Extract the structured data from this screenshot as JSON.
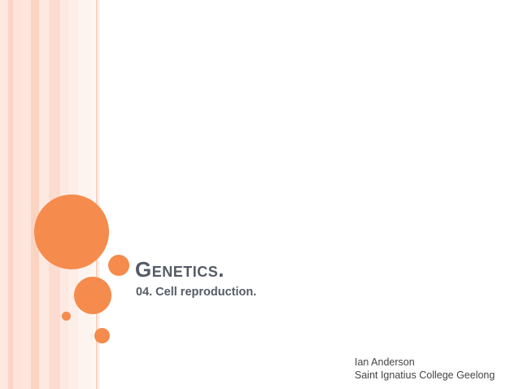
{
  "slide": {
    "title": "Genetics.",
    "subtitle": "04. Cell reproduction.",
    "author_name": "Ian Anderson",
    "author_school": "Saint Ignatius College Geelong"
  },
  "colors": {
    "accent": "#f58b4c",
    "stripe_light": "#fde9e1",
    "stripe_mid": "#fbd6c6",
    "title_text": "#555b66"
  }
}
